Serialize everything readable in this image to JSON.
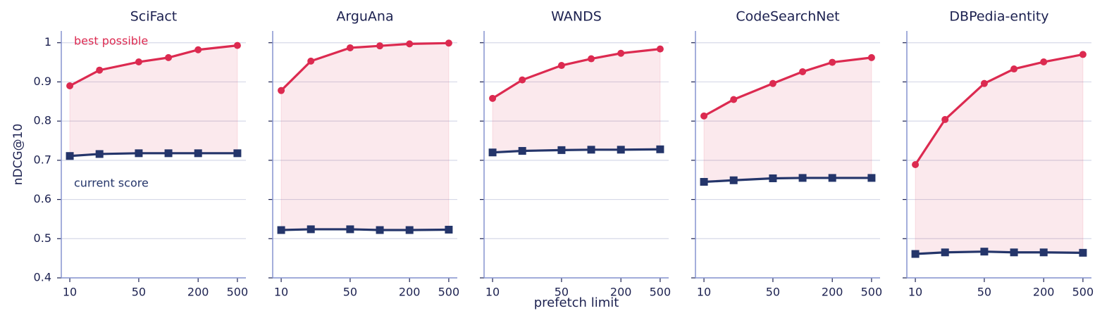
{
  "chart_data": [
    {
      "type": "line",
      "title": "SciFact",
      "ylabel": "nDCG@10",
      "xscale": "log",
      "x": [
        10,
        20,
        50,
        100,
        200,
        500
      ],
      "xlim": [
        8.2,
        610
      ],
      "xticks": [
        10,
        50,
        200,
        500
      ],
      "ylim": [
        0.4,
        1.03
      ],
      "yticks": [
        0.4,
        0.5,
        0.6,
        0.7,
        0.8,
        0.9,
        1.0
      ],
      "grid": true,
      "fill_between": true,
      "series": [
        {
          "name": "best possible",
          "color": "#dc2a50",
          "values": [
            0.89,
            0.93,
            0.951,
            0.962,
            0.982,
            0.993
          ]
        },
        {
          "name": "current score",
          "color": "#24356a",
          "values": [
            0.711,
            0.716,
            0.718,
            0.718,
            0.718,
            0.718
          ]
        }
      ]
    },
    {
      "type": "line",
      "title": "ArguAna",
      "xscale": "log",
      "x": [
        10,
        20,
        50,
        100,
        200,
        500
      ],
      "xlim": [
        8.2,
        610
      ],
      "xticks": [
        10,
        50,
        200,
        500
      ],
      "ylim": [
        0.4,
        1.03
      ],
      "yticks": [
        0.4,
        0.5,
        0.6,
        0.7,
        0.8,
        0.9,
        1.0
      ],
      "grid": true,
      "fill_between": true,
      "series": [
        {
          "color": "#dc2a50",
          "values": [
            0.878,
            0.953,
            0.987,
            0.992,
            0.997,
            0.999
          ]
        },
        {
          "color": "#24356a",
          "values": [
            0.522,
            0.524,
            0.524,
            0.522,
            0.522,
            0.523
          ]
        }
      ]
    },
    {
      "type": "line",
      "title": "WANDS",
      "xlabel": "prefetch limit",
      "xscale": "log",
      "x": [
        10,
        20,
        50,
        100,
        200,
        500
      ],
      "xlim": [
        8.2,
        610
      ],
      "xticks": [
        10,
        50,
        200,
        500
      ],
      "ylim": [
        0.4,
        1.03
      ],
      "yticks": [
        0.4,
        0.5,
        0.6,
        0.7,
        0.8,
        0.9,
        1.0
      ],
      "grid": true,
      "fill_between": true,
      "series": [
        {
          "color": "#dc2a50",
          "values": [
            0.858,
            0.905,
            0.942,
            0.959,
            0.973,
            0.984
          ]
        },
        {
          "color": "#24356a",
          "values": [
            0.72,
            0.724,
            0.726,
            0.727,
            0.727,
            0.728
          ]
        }
      ]
    },
    {
      "type": "line",
      "title": "CodeSearchNet",
      "xscale": "log",
      "x": [
        10,
        20,
        50,
        100,
        200,
        500
      ],
      "xlim": [
        8.2,
        610
      ],
      "xticks": [
        10,
        50,
        200,
        500
      ],
      "ylim": [
        0.4,
        1.03
      ],
      "yticks": [
        0.4,
        0.5,
        0.6,
        0.7,
        0.8,
        0.9,
        1.0
      ],
      "grid": true,
      "fill_between": true,
      "series": [
        {
          "color": "#dc2a50",
          "values": [
            0.813,
            0.855,
            0.896,
            0.926,
            0.95,
            0.962
          ]
        },
        {
          "color": "#24356a",
          "values": [
            0.645,
            0.649,
            0.654,
            0.655,
            0.655,
            0.655
          ]
        }
      ]
    },
    {
      "type": "line",
      "title": "DBPedia-entity",
      "xscale": "log",
      "x": [
        10,
        20,
        50,
        100,
        200,
        500
      ],
      "xlim": [
        8.2,
        610
      ],
      "xticks": [
        10,
        50,
        200,
        500
      ],
      "ylim": [
        0.4,
        1.03
      ],
      "yticks": [
        0.4,
        0.5,
        0.6,
        0.7,
        0.8,
        0.9,
        1.0
      ],
      "grid": true,
      "fill_between": true,
      "series": [
        {
          "color": "#dc2a50",
          "values": [
            0.689,
            0.804,
            0.896,
            0.933,
            0.951,
            0.97
          ]
        },
        {
          "color": "#24356a",
          "values": [
            0.461,
            0.465,
            0.467,
            0.465,
            0.465,
            0.464
          ]
        }
      ]
    }
  ]
}
